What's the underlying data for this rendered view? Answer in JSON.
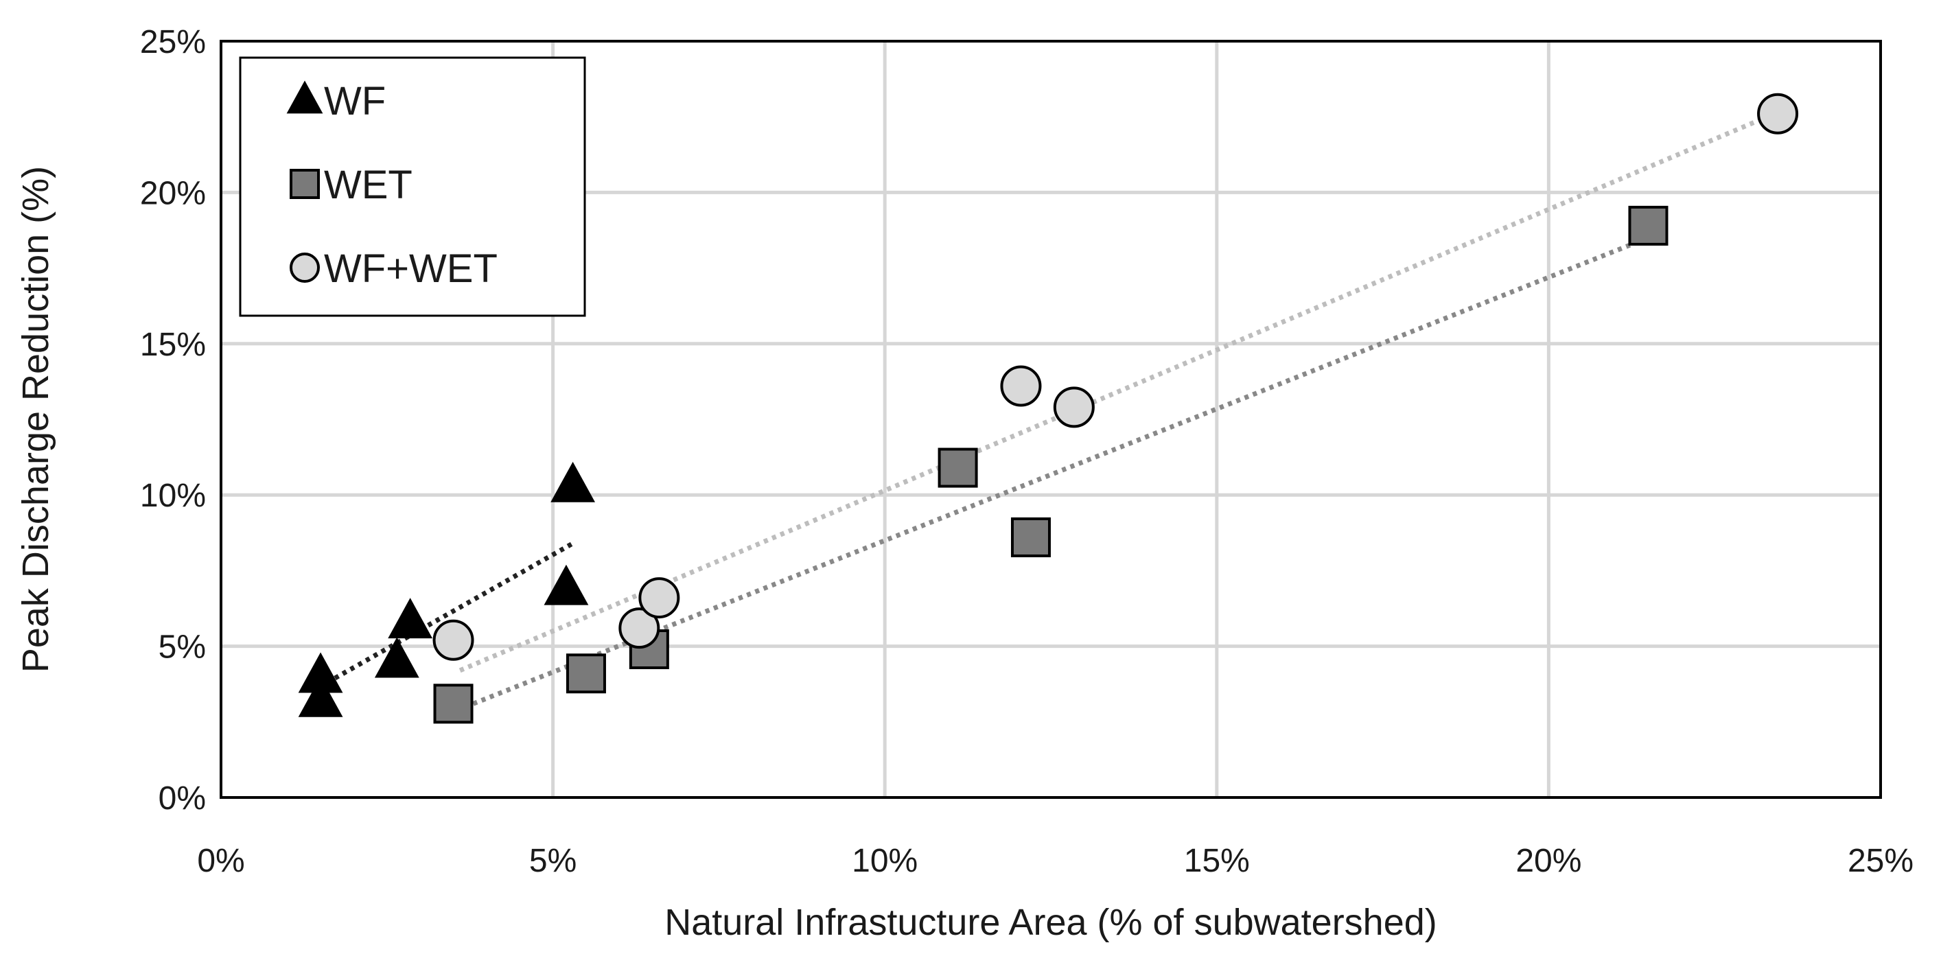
{
  "chart_data": {
    "type": "scatter",
    "title": "",
    "xlabel": "Natural Infrastucture Area (% of subwatershed)",
    "ylabel": "Peak Discharge Reduction (%)",
    "xlim": [
      0,
      25
    ],
    "ylim": [
      0,
      25
    ],
    "x_ticks": [
      0,
      5,
      10,
      15,
      20,
      25
    ],
    "y_ticks": [
      0,
      5,
      10,
      15,
      20,
      25
    ],
    "x_tick_labels": [
      "0%",
      "5%",
      "10%",
      "15%",
      "20%",
      "25%"
    ],
    "y_tick_labels": [
      "0%",
      "5%",
      "10%",
      "15%",
      "20%",
      "25%"
    ],
    "grid": true,
    "legend_position": "top-left",
    "series": [
      {
        "name": "WF",
        "marker": "triangle",
        "color": "#000000",
        "trendline_color": "#222222",
        "x": [
          1.5,
          1.5,
          2.65,
          2.85,
          5.2,
          5.3
        ],
        "y": [
          3.2,
          4.0,
          4.5,
          5.8,
          6.9,
          10.3
        ],
        "trendline": {
          "x": [
            1.6,
            5.3
          ],
          "y": [
            3.8,
            8.4
          ]
        }
      },
      {
        "name": "WET",
        "marker": "square",
        "color": "#7a7a7a",
        "trendline_color": "#888888",
        "x": [
          3.5,
          5.5,
          6.45,
          11.1,
          12.2,
          21.5
        ],
        "y": [
          3.1,
          4.1,
          4.9,
          10.9,
          8.6,
          18.9
        ],
        "trendline": {
          "x": [
            3.8,
            21.5
          ],
          "y": [
            3.1,
            18.5
          ]
        }
      },
      {
        "name": "WF+WET",
        "marker": "circle",
        "color": "#d9d9d9",
        "trendline_color": "#bdbdbd",
        "x": [
          3.5,
          6.3,
          6.6,
          12.05,
          12.85,
          23.45
        ],
        "y": [
          5.2,
          5.6,
          6.6,
          13.6,
          12.9,
          22.6
        ],
        "trendline": {
          "x": [
            3.6,
            23.4
          ],
          "y": [
            4.2,
            22.6
          ]
        }
      }
    ]
  }
}
